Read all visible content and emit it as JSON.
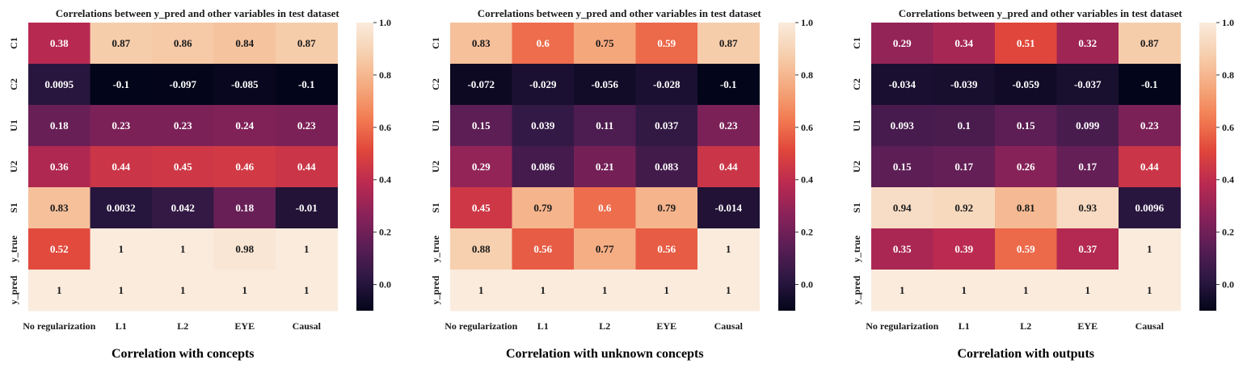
{
  "colormap": {
    "name": "rocket",
    "stops": [
      "#03051a",
      "#2d1842",
      "#5a1e55",
      "#8a2259",
      "#bb2a50",
      "#e0463b",
      "#f27c52",
      "#f5a97e",
      "#f6cfae",
      "#faebdd"
    ]
  },
  "colorbar": {
    "min": -0.1,
    "max": 1.0,
    "ticks": [
      "0.0",
      "0.2",
      "0.4",
      "0.6",
      "0.8",
      "1.0"
    ]
  },
  "chart_data": [
    {
      "type": "heatmap",
      "title": "Correlations between y_pred and other variables in test dataset",
      "caption": "Correlation with concepts",
      "rows": [
        "C1",
        "C2",
        "U1",
        "U2",
        "S1",
        "y_true",
        "y_pred"
      ],
      "columns": [
        "No regularization",
        "L1",
        "L2",
        "EYE",
        "Causal"
      ],
      "values": [
        [
          0.38,
          0.87,
          0.86,
          0.84,
          0.87
        ],
        [
          0.0095,
          -0.1,
          -0.097,
          -0.085,
          -0.1
        ],
        [
          0.18,
          0.23,
          0.23,
          0.24,
          0.23
        ],
        [
          0.36,
          0.44,
          0.45,
          0.46,
          0.44
        ],
        [
          0.83,
          0.0032,
          0.042,
          0.18,
          -0.01
        ],
        [
          0.52,
          1,
          1,
          0.98,
          1
        ],
        [
          1,
          1,
          1,
          1,
          1
        ]
      ],
      "labels": [
        [
          "0.38",
          "0.87",
          "0.86",
          "0.84",
          "0.87"
        ],
        [
          "0.0095",
          "-0.1",
          "-0.097",
          "-0.085",
          "-0.1"
        ],
        [
          "0.18",
          "0.23",
          "0.23",
          "0.24",
          "0.23"
        ],
        [
          "0.36",
          "0.44",
          "0.45",
          "0.46",
          "0.44"
        ],
        [
          "0.83",
          "0.0032",
          "0.042",
          "0.18",
          "-0.01"
        ],
        [
          "0.52",
          "1",
          "1",
          "0.98",
          "1"
        ],
        [
          "1",
          "1",
          "1",
          "1",
          "1"
        ]
      ]
    },
    {
      "type": "heatmap",
      "title": "Correlations between y_pred and other variables in test dataset",
      "caption": "Correlation with unknown concepts",
      "rows": [
        "C1",
        "C2",
        "U1",
        "U2",
        "S1",
        "y_true",
        "y_pred"
      ],
      "columns": [
        "No regularization",
        "L1",
        "L2",
        "EYE",
        "Causal"
      ],
      "values": [
        [
          0.83,
          0.6,
          0.75,
          0.59,
          0.87
        ],
        [
          -0.072,
          -0.029,
          -0.056,
          -0.028,
          -0.1
        ],
        [
          0.15,
          0.039,
          0.11,
          0.037,
          0.23
        ],
        [
          0.29,
          0.086,
          0.21,
          0.083,
          0.44
        ],
        [
          0.45,
          0.79,
          0.6,
          0.79,
          -0.014
        ],
        [
          0.88,
          0.56,
          0.77,
          0.56,
          1
        ],
        [
          1,
          1,
          1,
          1,
          1
        ]
      ],
      "labels": [
        [
          "0.83",
          "0.6",
          "0.75",
          "0.59",
          "0.87"
        ],
        [
          "-0.072",
          "-0.029",
          "-0.056",
          "-0.028",
          "-0.1"
        ],
        [
          "0.15",
          "0.039",
          "0.11",
          "0.037",
          "0.23"
        ],
        [
          "0.29",
          "0.086",
          "0.21",
          "0.083",
          "0.44"
        ],
        [
          "0.45",
          "0.79",
          "0.6",
          "0.79",
          "-0.014"
        ],
        [
          "0.88",
          "0.56",
          "0.77",
          "0.56",
          "1"
        ],
        [
          "1",
          "1",
          "1",
          "1",
          "1"
        ]
      ]
    },
    {
      "type": "heatmap",
      "title": "Correlations between y_pred and other variables in test dataset",
      "caption": "Correlation with outputs",
      "rows": [
        "C1",
        "C2",
        "U1",
        "U2",
        "S1",
        "y_true",
        "y_pred"
      ],
      "columns": [
        "No regularization",
        "L1",
        "L2",
        "EYE",
        "Causal"
      ],
      "values": [
        [
          0.29,
          0.34,
          0.51,
          0.32,
          0.87
        ],
        [
          -0.034,
          -0.039,
          -0.059,
          -0.037,
          -0.1
        ],
        [
          0.093,
          0.1,
          0.15,
          0.099,
          0.23
        ],
        [
          0.15,
          0.17,
          0.26,
          0.17,
          0.44
        ],
        [
          0.94,
          0.92,
          0.81,
          0.93,
          0.0096
        ],
        [
          0.35,
          0.39,
          0.59,
          0.37,
          1
        ],
        [
          1,
          1,
          1,
          1,
          1
        ]
      ],
      "labels": [
        [
          "0.29",
          "0.34",
          "0.51",
          "0.32",
          "0.87"
        ],
        [
          "-0.034",
          "-0.039",
          "-0.059",
          "-0.037",
          "-0.1"
        ],
        [
          "0.093",
          "0.1",
          "0.15",
          "0.099",
          "0.23"
        ],
        [
          "0.15",
          "0.17",
          "0.26",
          "0.17",
          "0.44"
        ],
        [
          "0.94",
          "0.92",
          "0.81",
          "0.93",
          "0.0096"
        ],
        [
          "0.35",
          "0.39",
          "0.59",
          "0.37",
          "1"
        ],
        [
          "1",
          "1",
          "1",
          "1",
          "1"
        ]
      ]
    }
  ]
}
